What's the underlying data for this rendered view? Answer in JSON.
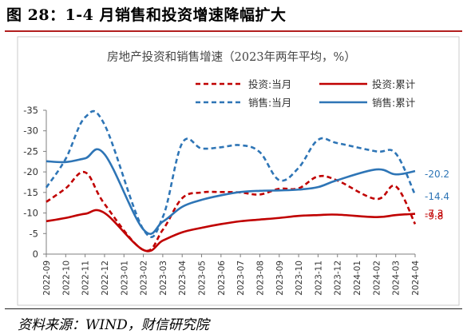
{
  "figure": {
    "title": "图 28：1-4 月销售和投资增速降幅扩大",
    "source": "资料来源：WIND，财信研究院"
  },
  "chart_data": {
    "type": "line",
    "title": "房地产投资和销售增速（2023年两年平均，%）",
    "xlabel": "",
    "ylabel": "",
    "ylim": [
      -35,
      0
    ],
    "yticks": [
      0,
      -5,
      -10,
      -15,
      -20,
      -25,
      -30,
      -35
    ],
    "grid": false,
    "legend_position": "top-right",
    "x": [
      "2022-09",
      "2022-10",
      "2022-11",
      "2022-12",
      "2023-02",
      "2023-03",
      "2023-04",
      "2023-05",
      "2023-06",
      "2023-07",
      "2023-08",
      "2023-09",
      "2023-10",
      "2023-11",
      "2023-12",
      "2024-02",
      "2024-03",
      "2024-04"
    ],
    "x_tick_labels": [
      "2022-09",
      "2022-10",
      "2022-11",
      "2022-12",
      "2023-01",
      "2023-02",
      "2023-03",
      "2023-04",
      "2023-05",
      "2023-06",
      "2023-07",
      "2023-08",
      "2023-09",
      "2023-10",
      "2023-11",
      "2023-12",
      "2024-01",
      "2024-02",
      "2024-03",
      "2024-04"
    ],
    "series": [
      {
        "name": "投资:当月",
        "color": "#c00000",
        "dash": "dash",
        "values": [
          -12.7,
          -16.0,
          -19.9,
          -12.2,
          -1.0,
          -5.9,
          -13.6,
          -15.0,
          -15.1,
          -15.0,
          -14.5,
          -15.9,
          -16.0,
          -18.9,
          -17.9,
          -13.4,
          -16.5,
          -7.3
        ],
        "end_label": "-7.3"
      },
      {
        "name": "投资:累计",
        "color": "#c00000",
        "dash": "solid",
        "values": [
          -8.0,
          -8.8,
          -9.8,
          -10.0,
          -1.0,
          -3.3,
          -5.3,
          -6.4,
          -7.3,
          -8.0,
          -8.4,
          -8.8,
          -9.3,
          -9.5,
          -9.6,
          -9.0,
          -9.5,
          -9.8
        ],
        "end_label": "-9.8"
      },
      {
        "name": "销售:当月",
        "color": "#2e75b6",
        "dash": "dash",
        "values": [
          -16.2,
          -23.2,
          -33.3,
          -31.5,
          -6.0,
          -9.0,
          -27.0,
          -25.7,
          -26.0,
          -26.5,
          -24.8,
          -18.0,
          -21.0,
          -27.8,
          -27.0,
          -25.0,
          -24.5,
          -14.4
        ],
        "end_label": "-14.4"
      },
      {
        "name": "销售:累计",
        "color": "#2e75b6",
        "dash": "solid",
        "values": [
          -22.6,
          -22.4,
          -23.3,
          -24.3,
          -6.0,
          -7.9,
          -11.5,
          -13.2,
          -14.3,
          -15.1,
          -15.4,
          -15.5,
          -15.7,
          -16.3,
          -18.0,
          -20.6,
          -19.4,
          -20.2
        ],
        "end_label": "-20.2"
      }
    ]
  }
}
